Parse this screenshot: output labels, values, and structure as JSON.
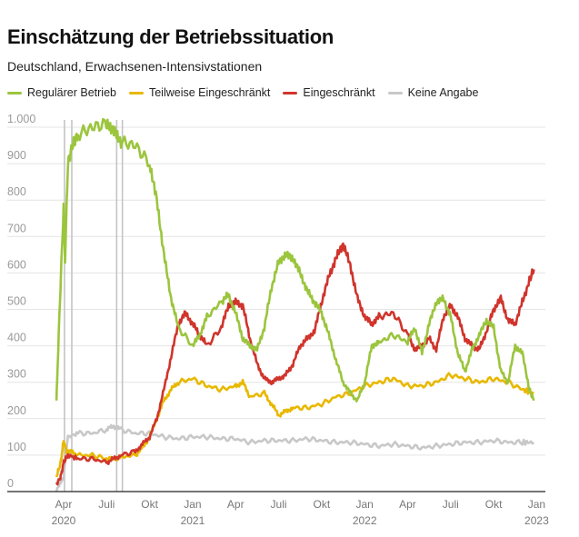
{
  "chart_data": {
    "type": "line",
    "title": "Einschätzung der Betriebssituation",
    "subtitle": "Deutschland, Erwachsenen-Intensivstationen",
    "x_unit": "months since Jan 2020",
    "ylim": [
      0,
      1000
    ],
    "yticks": [
      {
        "v": 0,
        "label": "0"
      },
      {
        "v": 100,
        "label": "100"
      },
      {
        "v": 200,
        "label": "200"
      },
      {
        "v": 300,
        "label": "300"
      },
      {
        "v": 400,
        "label": "400"
      },
      {
        "v": 500,
        "label": "500"
      },
      {
        "v": 600,
        "label": "600"
      },
      {
        "v": 700,
        "label": "700"
      },
      {
        "v": 800,
        "label": "800"
      },
      {
        "v": 900,
        "label": "900"
      },
      {
        "v": 1000,
        "label": "1.000"
      }
    ],
    "xticks": [
      {
        "m": 3,
        "label": "Apr",
        "year": "2020"
      },
      {
        "m": 6,
        "label": "Juli"
      },
      {
        "m": 9,
        "label": "Okt"
      },
      {
        "m": 12,
        "label": "Jan",
        "year": "2021"
      },
      {
        "m": 15,
        "label": "Apr"
      },
      {
        "m": 18,
        "label": "Juli"
      },
      {
        "m": 21,
        "label": "Okt"
      },
      {
        "m": 24,
        "label": "Jan",
        "year": "2022"
      },
      {
        "m": 27,
        "label": "Apr"
      },
      {
        "m": 30,
        "label": "Juli"
      },
      {
        "m": 33,
        "label": "Okt"
      },
      {
        "m": 36,
        "label": "Jan",
        "year": "2023"
      }
    ],
    "grid": true,
    "legend_position": "top-left",
    "annotation_lines": [
      3.06,
      3.57,
      6.7,
      7.1
    ],
    "series": [
      {
        "name": "Keine Angabe",
        "color": "#c8c8c8",
        "x": [
          2.5,
          3.0,
          3.3,
          4,
          5,
          6,
          6.5,
          7,
          8,
          9,
          10,
          11,
          12,
          13,
          14,
          15,
          16,
          17,
          18,
          19,
          20,
          21,
          22,
          23,
          24,
          25,
          26,
          27,
          28,
          29,
          30,
          31,
          32,
          33,
          34,
          35,
          35.8
        ],
        "y": [
          0,
          40,
          150,
          160,
          160,
          170,
          180,
          170,
          160,
          160,
          150,
          145,
          150,
          150,
          145,
          145,
          135,
          140,
          140,
          140,
          145,
          140,
          135,
          135,
          130,
          125,
          130,
          125,
          120,
          125,
          130,
          135,
          135,
          140,
          135,
          135,
          135
        ]
      },
      {
        "name": "Teilweise Eingeschränkt",
        "color": "#e8b800",
        "x": [
          2.5,
          2.8,
          3.0,
          3.2,
          3.5,
          4,
          5,
          6,
          6.5,
          7,
          8,
          8.5,
          9,
          9.5,
          10,
          10.5,
          11,
          12,
          13,
          14,
          15,
          15.5,
          16,
          17,
          17.5,
          18,
          18.5,
          19,
          20,
          21,
          22,
          23,
          24,
          25,
          26,
          27,
          28,
          29,
          30,
          31,
          32,
          33,
          34,
          35,
          35.8
        ],
        "y": [
          40,
          80,
          140,
          110,
          110,
          100,
          100,
          90,
          90,
          95,
          100,
          120,
          150,
          200,
          250,
          280,
          300,
          310,
          290,
          280,
          290,
          300,
          260,
          270,
          240,
          210,
          220,
          230,
          230,
          240,
          260,
          270,
          290,
          300,
          310,
          290,
          290,
          300,
          320,
          310,
          300,
          310,
          300,
          280,
          270
        ]
      },
      {
        "name": "Eingeschränkt",
        "color": "#d0342c",
        "x": [
          2.5,
          2.8,
          3.0,
          3.3,
          4,
          5,
          6,
          6.5,
          7,
          8,
          8.5,
          9,
          9.5,
          10,
          10.5,
          11,
          11.5,
          12,
          12.5,
          13,
          14,
          14.5,
          15,
          15.5,
          16,
          16.5,
          17,
          17.5,
          18,
          18.5,
          19,
          19.5,
          20,
          20.5,
          21,
          21.5,
          22,
          22.5,
          23,
          23.5,
          24,
          24.5,
          25,
          26,
          27,
          27.5,
          28,
          28.5,
          29,
          29.5,
          30,
          30.5,
          31,
          31.5,
          32,
          32.5,
          33,
          33.5,
          34,
          34.5,
          35,
          35.5,
          35.8
        ],
        "y": [
          20,
          40,
          80,
          100,
          90,
          90,
          80,
          90,
          100,
          110,
          130,
          150,
          200,
          280,
          370,
          460,
          490,
          460,
          430,
          400,
          450,
          510,
          520,
          510,
          420,
          350,
          310,
          300,
          310,
          320,
          350,
          400,
          420,
          440,
          520,
          590,
          640,
          680,
          620,
          530,
          480,
          460,
          480,
          490,
          430,
          390,
          400,
          420,
          390,
          480,
          510,
          480,
          420,
          400,
          390,
          440,
          500,
          530,
          470,
          460,
          520,
          580,
          610
        ]
      },
      {
        "name": "Regulärer Betrieb",
        "color": "#9bc53d",
        "x": [
          2.5,
          2.7,
          3.0,
          3.1,
          3.3,
          3.6,
          4,
          5,
          6,
          6.5,
          7,
          8,
          9,
          9.5,
          10,
          10.5,
          11,
          12,
          12.5,
          13,
          14,
          14.5,
          15,
          15.5,
          16,
          16.5,
          17,
          17.5,
          18,
          18.5,
          19,
          19.5,
          20,
          20.5,
          21,
          21.5,
          22,
          22.5,
          23,
          23.5,
          24,
          24.5,
          25,
          26,
          27,
          27.5,
          28,
          28.5,
          29,
          29.5,
          30,
          30.5,
          31,
          31.5,
          32,
          32.5,
          33,
          33.5,
          34,
          34.5,
          35,
          35.5,
          35.8
        ],
        "y": [
          250,
          480,
          780,
          640,
          900,
          950,
          980,
          1000,
          1010,
          990,
          960,
          950,
          900,
          800,
          650,
          530,
          450,
          400,
          430,
          480,
          520,
          540,
          490,
          420,
          400,
          390,
          450,
          560,
          630,
          650,
          640,
          600,
          550,
          520,
          490,
          430,
          360,
          300,
          270,
          250,
          300,
          400,
          410,
          430,
          410,
          450,
          380,
          460,
          520,
          530,
          480,
          380,
          330,
          390,
          430,
          470,
          450,
          330,
          300,
          400,
          380,
          280,
          250
        ]
      }
    ]
  },
  "legend_order": [
    "Regulärer Betrieb",
    "Teilweise Eingeschränkt",
    "Eingeschränkt",
    "Keine Angabe"
  ]
}
